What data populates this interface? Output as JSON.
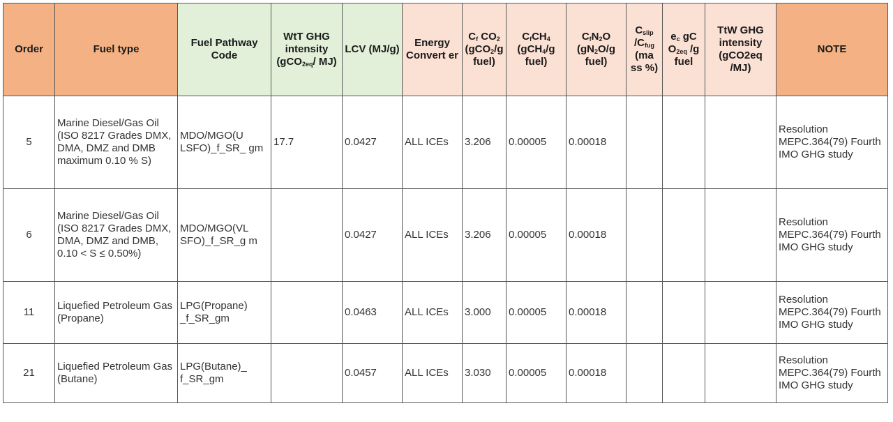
{
  "headers": {
    "order": "Order",
    "fuel_type": "Fuel type",
    "pathway_code": "Fuel Pathway Code",
    "wtt_main": "WtT GHG intensity (gCO",
    "wtt_sub": "2eq",
    "wtt_tail": "/ MJ)",
    "lcv": "LCV (MJ/g)",
    "energy_converter": "Energy Convert er",
    "cf_co2_a": "C",
    "cf_co2_a_sub": "f",
    "cf_co2_b": "CO",
    "cf_co2_b_sub": "2",
    "cf_co2_c": "(gCO",
    "cf_co2_c_sub": "2",
    "cf_co2_d": "/g fuel)",
    "cf_ch4_a": "C",
    "cf_ch4_a_sub": "f",
    "cf_ch4_b": "CH",
    "cf_ch4_b_sub": "4",
    "cf_ch4_c": "(gCH",
    "cf_ch4_c_sub": "4",
    "cf_ch4_d": "/g fuel)",
    "cf_n2o_a": "C",
    "cf_n2o_a_sub": "f",
    "cf_n2o_b": "N",
    "cf_n2o_b_sub": "2",
    "cf_n2o_c": "O (gN",
    "cf_n2o_c_sub": "2",
    "cf_n2o_d": "O/g fuel)",
    "cslip_a": "C",
    "cslip_a_sub": "slip",
    "cslip_b": "/C",
    "cslip_b_sub": "fug",
    "cslip_c": "(ma ss %)",
    "ec_a": "e",
    "ec_a_sub": "c",
    "ec_b": "gC O",
    "ec_b_sub": "2eq",
    "ec_c": "/g fuel",
    "ttw": "TtW GHG intensity (gCO2eq /MJ)",
    "note": "NOTE"
  },
  "rows": [
    {
      "order": "5",
      "fuel_type": "Marine Diesel/Gas Oil (ISO 8217 Grades DMX, DMA, DMZ and DMB maximum 0.10 % S)",
      "pathway_code": "MDO/MGO(U LSFO)_f_SR_ gm",
      "wtt": "17.7",
      "lcv": "0.0427",
      "energy_converter": "ALL ICEs",
      "cf_co2": "3.206",
      "cf_ch4": "0.00005",
      "cf_n2o": "0.00018",
      "cslip": "",
      "ec": "",
      "ttw": "",
      "note": "Resolution MEPC.364(79) Fourth IMO GHG study"
    },
    {
      "order": "6",
      "fuel_type": "Marine Diesel/Gas Oil (ISO 8217 Grades DMX, DMA, DMZ and DMB, 0.10 < S ≤ 0.50%)",
      "pathway_code": "MDO/MGO(VL SFO)_f_SR_g m",
      "wtt": "",
      "lcv": "0.0427",
      "energy_converter": "ALL ICEs",
      "cf_co2": "3.206",
      "cf_ch4": "0.00005",
      "cf_n2o": "0.00018",
      "cslip": "",
      "ec": "",
      "ttw": "",
      "note": "Resolution MEPC.364(79) Fourth IMO GHG study"
    },
    {
      "order": "11",
      "fuel_type": "Liquefied Petroleum Gas (Propane)",
      "pathway_code": "LPG(Propane) _f_SR_gm",
      "wtt": "",
      "lcv": "0.0463",
      "energy_converter": "ALL ICEs",
      "cf_co2": "3.000",
      "cf_ch4": "0.00005",
      "cf_n2o": "0.00018",
      "cslip": "",
      "ec": "",
      "ttw": "",
      "note": "Resolution MEPC.364(79) Fourth IMO GHG study"
    },
    {
      "order": "21",
      "fuel_type": "Liquefied Petroleum Gas (Butane)",
      "pathway_code": "LPG(Butane)_ f_SR_gm",
      "wtt": "",
      "lcv": "0.0457",
      "energy_converter": "ALL ICEs",
      "cf_co2": "3.030",
      "cf_ch4": "0.00005",
      "cf_n2o": "0.00018",
      "cslip": "",
      "ec": "",
      "ttw": "",
      "note": "Resolution MEPC.364(79) Fourth IMO GHG study"
    }
  ]
}
